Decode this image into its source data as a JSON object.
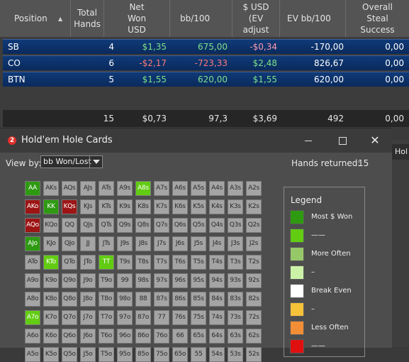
{
  "stats_table": {
    "headers": {
      "position": "Position",
      "total_hands": [
        "Total",
        "Hands"
      ],
      "net_won": [
        "Net",
        "Won",
        "USD"
      ],
      "bb100": "bb/100",
      "usd_ev": [
        "$ USD",
        "(EV",
        "adjust"
      ],
      "ev_bb100": "EV bb/100",
      "steal": [
        "Overall",
        "Steal",
        "Success"
      ]
    },
    "rows": [
      {
        "position": "SB",
        "hands": "4",
        "net_won": "$1,35",
        "bb100": "675,00",
        "usd_ev": "-$0,34",
        "ev_bb100": "-170,00",
        "steal": "0,00"
      },
      {
        "position": "CO",
        "hands": "6",
        "net_won": "-$2,17",
        "bb100": "-723,33",
        "usd_ev": "$2,48",
        "ev_bb100": "826,67",
        "steal": "0,00"
      },
      {
        "position": "BTN",
        "hands": "5",
        "net_won": "$1,55",
        "bb100": "620,00",
        "usd_ev": "$1,55",
        "ev_bb100": "620,00",
        "steal": "0,00"
      }
    ],
    "totals": {
      "hands": "15",
      "net_won": "$0,73",
      "bb100": "97,3",
      "usd_ev": "$3,69",
      "ev_bb100": "492",
      "steal": "0,00"
    }
  },
  "window": {
    "badge": "2",
    "title": "Hold'em Hole Cards",
    "view_by_label": "View by:",
    "view_by_value": "bb Won/Lost",
    "hands_returned_label": "Hands returned:",
    "hands_returned_value": "15"
  },
  "grid": {
    "rows": [
      [
        "AA",
        "AKs",
        "AQs",
        "AJs",
        "ATs",
        "A9s",
        "A8s",
        "A7s",
        "A6s",
        "A5s",
        "A4s",
        "A3s",
        "A2s"
      ],
      [
        "AKo",
        "KK",
        "KQs",
        "KJs",
        "KTs",
        "K9s",
        "K8s",
        "K7s",
        "K6s",
        "K5s",
        "K4s",
        "K3s",
        "K2s"
      ],
      [
        "AQo",
        "KQo",
        "QQ",
        "QJs",
        "QTs",
        "Q9s",
        "Q8s",
        "Q7s",
        "Q6s",
        "Q5s",
        "Q4s",
        "Q3s",
        "Q2s"
      ],
      [
        "AJo",
        "KJo",
        "QJo",
        "JJ",
        "JTs",
        "J9s",
        "J8s",
        "J7s",
        "J6s",
        "J5s",
        "J4s",
        "J3s",
        "J2s"
      ],
      [
        "ATo",
        "KTo",
        "QTo",
        "JTo",
        "TT",
        "T9s",
        "T8s",
        "T7s",
        "T6s",
        "T5s",
        "T4s",
        "T3s",
        "T2s"
      ],
      [
        "A9o",
        "K9o",
        "Q9o",
        "J9o",
        "T9o",
        "99",
        "98s",
        "97s",
        "96s",
        "95s",
        "94s",
        "93s",
        "92s"
      ],
      [
        "A8o",
        "K8o",
        "Q8o",
        "J8o",
        "T8o",
        "98o",
        "88",
        "87s",
        "86s",
        "85s",
        "84s",
        "83s",
        "82s"
      ],
      [
        "A7o",
        "K7o",
        "Q7o",
        "J7o",
        "T7o",
        "97o",
        "87o",
        "77",
        "76s",
        "75s",
        "74s",
        "73s",
        "72s"
      ],
      [
        "A6o",
        "K6o",
        "Q6o",
        "J6o",
        "T6o",
        "96o",
        "86o",
        "76o",
        "66",
        "65s",
        "64s",
        "63s",
        "62s"
      ],
      [
        "A5o",
        "K5o",
        "Q5o",
        "J5o",
        "T5o",
        "95o",
        "85o",
        "75o",
        "65o",
        "55",
        "54s",
        "53s",
        "52s"
      ]
    ],
    "highlights": {
      "AA": "most",
      "KK": "most",
      "AJo": "most",
      "A8s": "won",
      "KTo": "won",
      "TT": "won",
      "A7o": "won",
      "AKo": "lost",
      "KQs": "lost",
      "AQo": "lost"
    }
  },
  "legend": {
    "title": "Legend",
    "items": [
      {
        "label": "Most $ Won",
        "color": "#2e9a12"
      },
      {
        "label": "——",
        "color": "#62cc12"
      },
      {
        "label": "More Often",
        "color": "#96c86a"
      },
      {
        "label": "–",
        "color": "#ccf2a8"
      },
      {
        "label": "Break Even",
        "color": "#ffffff"
      },
      {
        "label": "–",
        "color": "#f6c23a"
      },
      {
        "label": "Less Often",
        "color": "#f28e36"
      },
      {
        "label": "——",
        "color": "#e01010"
      }
    ]
  },
  "side_window": {
    "tab_label": "Hol"
  }
}
